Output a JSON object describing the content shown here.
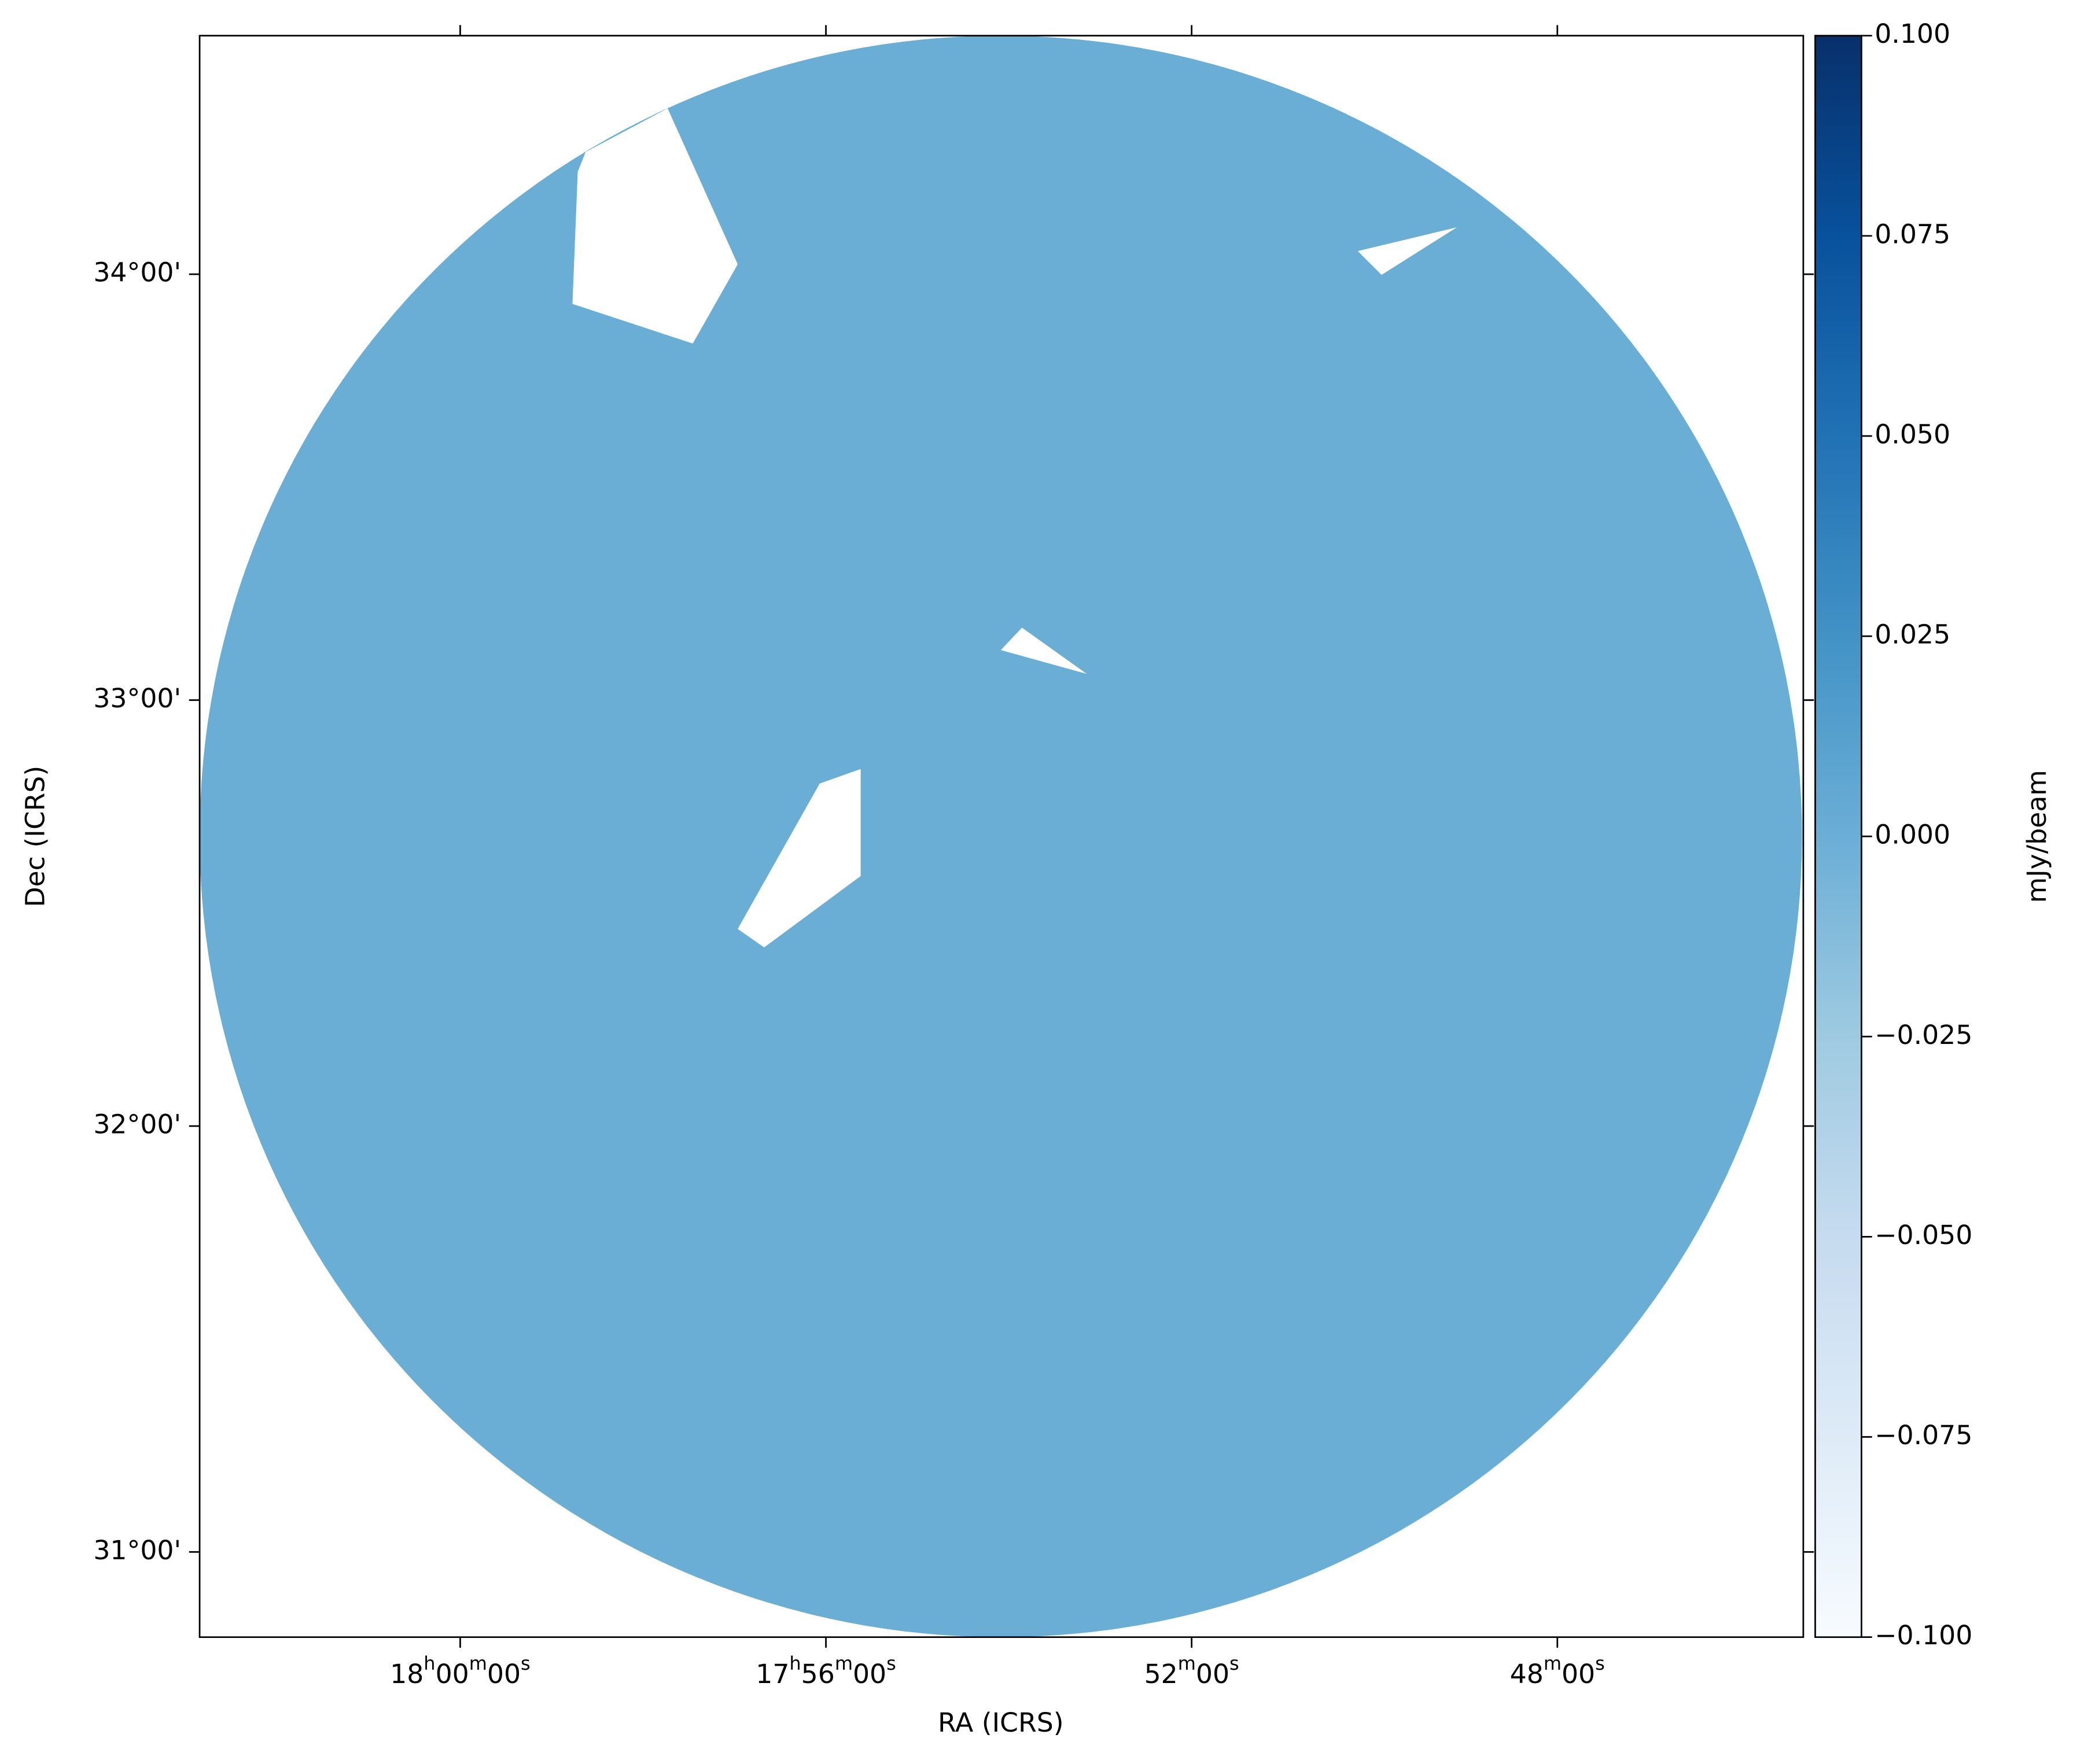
{
  "chart_data": {
    "type": "image",
    "xlabel": "RA (ICRS)",
    "ylabel": "Dec (ICRS)",
    "colorbar_label": "mJy/beam",
    "xlim": [
      1082.85,
      1065.31
    ],
    "xticks": [
      {
        "value": 1080,
        "label": [
          "18",
          "h",
          "00",
          "m",
          "00",
          "s"
        ]
      },
      {
        "value": 1076,
        "label": [
          "17",
          "h",
          "56",
          "m",
          "00",
          "s"
        ]
      },
      {
        "value": 1072,
        "label": [
          "52",
          "m",
          "00",
          "s"
        ]
      },
      {
        "value": 1068,
        "label": [
          "48",
          "m",
          "00",
          "s"
        ]
      }
    ],
    "ylim": [
      30.8,
      34.56
    ],
    "yticks": [
      {
        "value": 31,
        "label": "31°00'"
      },
      {
        "value": 32,
        "label": "32°00'"
      },
      {
        "value": 33,
        "label": "33°00'"
      },
      {
        "value": 34,
        "label": "34°00'"
      }
    ],
    "clim": [
      -0.1,
      0.1
    ],
    "cticks": [
      {
        "value": -0.1,
        "label": "−0.100"
      },
      {
        "value": -0.075,
        "label": "−0.075"
      },
      {
        "value": -0.05,
        "label": "−0.050"
      },
      {
        "value": -0.025,
        "label": "−0.025"
      },
      {
        "value": 0,
        "label": "0.000"
      },
      {
        "value": 0.025,
        "label": "0.025"
      },
      {
        "value": 0.05,
        "label": "0.050"
      },
      {
        "value": 0.075,
        "label": "0.075"
      },
      {
        "value": 0.1,
        "label": "0.100"
      }
    ],
    "colormap": [
      "#f7fbff",
      "#deebf7",
      "#c6dbef",
      "#9ecae1",
      "#6baed6",
      "#4292c6",
      "#2171b5",
      "#08519c",
      "#08306b"
    ],
    "image_color": "#6aadd5"
  }
}
